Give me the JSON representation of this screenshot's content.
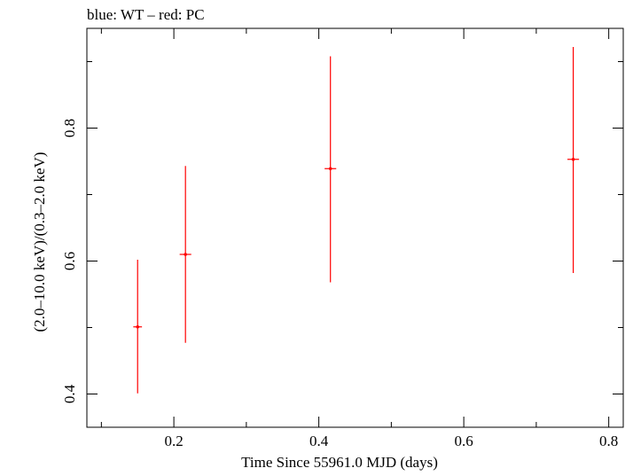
{
  "chart_data": {
    "type": "scatter",
    "title": "blue: WT – red: PC",
    "xlabel": "Time Since 55961.0 MJD (days)",
    "ylabel": "(2.0–10.0 keV)/(0.3–2.0 keV)",
    "xlim": [
      0.08,
      0.82
    ],
    "ylim": [
      0.35,
      0.95
    ],
    "x_ticks": [
      {
        "value": 0.2,
        "label": "0.2"
      },
      {
        "value": 0.4,
        "label": "0.4"
      },
      {
        "value": 0.6,
        "label": "0.6"
      },
      {
        "value": 0.8,
        "label": "0.8"
      }
    ],
    "y_ticks": [
      {
        "value": 0.4,
        "label": "0.4"
      },
      {
        "value": 0.6,
        "label": "0.6"
      },
      {
        "value": 0.8,
        "label": "0.8"
      }
    ],
    "x_minor_step": 0.1,
    "y_minor_step": 0.1,
    "grid": false,
    "series": [
      {
        "color": "#ff0000",
        "points": [
          {
            "x": 0.15,
            "y": 0.501,
            "xerr": 0.006,
            "y_low": 0.401,
            "y_high": 0.602
          },
          {
            "x": 0.216,
            "y": 0.61,
            "xerr": 0.008,
            "y_low": 0.477,
            "y_high": 0.743
          },
          {
            "x": 0.416,
            "y": 0.739,
            "xerr": 0.008,
            "y_low": 0.568,
            "y_high": 0.908
          },
          {
            "x": 0.751,
            "y": 0.753,
            "xerr": 0.008,
            "y_low": 0.582,
            "y_high": 0.922
          }
        ]
      }
    ]
  }
}
